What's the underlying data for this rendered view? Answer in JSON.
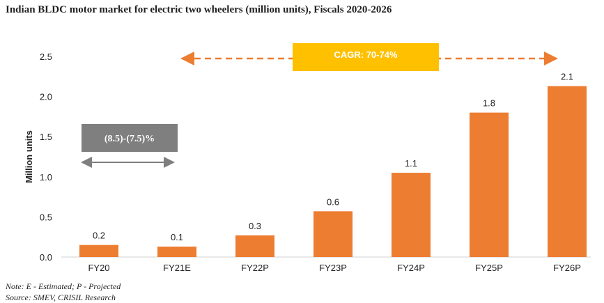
{
  "title": "Indian BLDC motor market for electric two wheelers (million units), Fiscals 2020-2026",
  "notes": {
    "note": "Note: E - Estimated; P - Projected",
    "source": "Source: SMEV, CRISIL Research"
  },
  "annotations": {
    "cagr_early": "(8.5)-(7.5)%",
    "cagr_late": "CAGR: 70-74%"
  },
  "colors": {
    "bar": "#ED7D31",
    "cagr_late_box": "#FFC000",
    "cagr_early_box": "#7F7F7F",
    "arrow_early": "#7F7F7F",
    "arrow_late": "#ED7D31"
  },
  "chart_data": {
    "type": "bar",
    "categories": [
      "FY20",
      "FY21E",
      "FY22P",
      "FY23P",
      "FY24P",
      "FY25P",
      "FY26P"
    ],
    "values": [
      0.15,
      0.13,
      0.27,
      0.57,
      1.05,
      1.8,
      2.13
    ],
    "data_labels": [
      "0.2",
      "0.1",
      "0.3",
      "0.6",
      "1.1",
      "1.8",
      "2.1"
    ],
    "ylabel": "Million units",
    "xlabel": "",
    "ylim": [
      0,
      2.5
    ],
    "yticks": [
      "0.0",
      "0.5",
      "1.0",
      "1.5",
      "2.0",
      "2.5"
    ],
    "grid": false,
    "legend": "none"
  }
}
